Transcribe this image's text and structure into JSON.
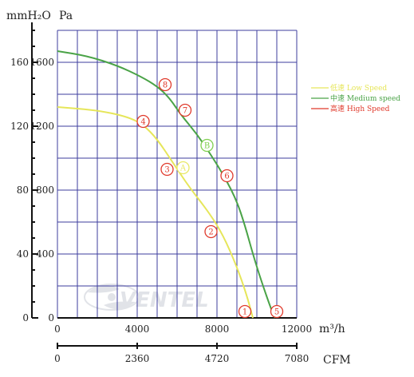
{
  "colors": {
    "grid": "#3d3d9e",
    "axis": "#111111",
    "low": "#e6e65a",
    "medium": "#4aa347",
    "high": "#e0392b",
    "marker_green": "#7fcf4f",
    "marker_yellow": "#e8e866",
    "watermark": "#c9cdd6"
  },
  "units": {
    "pressure_left": "mmH₂O",
    "pressure_right": "Pa",
    "flow_bottom": "m³/h",
    "flow_bottom2": "CFM"
  },
  "watermark": "VENTEL",
  "chart_data": {
    "type": "line",
    "title": "",
    "x_label": "m³/h",
    "x_range": [
      0,
      12000
    ],
    "x_ticks": [
      0,
      4000,
      8000,
      12000
    ],
    "x_tick_labels": [
      "0",
      "4000",
      "8000",
      "12000"
    ],
    "x2_label": "CFM",
    "x2_ticks": [
      0,
      2360,
      4720,
      7080
    ],
    "x2_tick_labels": [
      "0",
      "2360",
      "4720",
      "7080"
    ],
    "y_label": "mmH₂O",
    "y_range": [
      0,
      180
    ],
    "y_ticks": [
      0,
      40,
      80,
      120,
      160
    ],
    "y_tick_labels": [
      "0",
      "40",
      "80",
      "120",
      "160"
    ],
    "y2_label": "Pa",
    "y2_tick_labels": [
      "0",
      "400",
      "800",
      "1200",
      "1600"
    ],
    "grid": true,
    "legend_position": "top-right",
    "legend": [
      {
        "key": "low",
        "label": "低速 Low Speed",
        "color": "#e6e65a"
      },
      {
        "key": "medium",
        "label": "中速 Medium speed",
        "color": "#4aa347"
      },
      {
        "key": "high",
        "label": "高速 High Speed",
        "color": "#e0392b"
      }
    ],
    "series": [
      {
        "key": "low",
        "color": "#e6e65a",
        "points": [
          [
            0,
            132
          ],
          [
            2000,
            130
          ],
          [
            3500,
            126
          ],
          [
            4300,
            121
          ],
          [
            5000,
            112
          ],
          [
            5800,
            97
          ],
          [
            6600,
            82
          ],
          [
            7600,
            66
          ],
          [
            8300,
            52
          ],
          [
            9000,
            32
          ],
          [
            9500,
            14
          ],
          [
            9800,
            0
          ]
        ]
      },
      {
        "key": "medium",
        "color": "#4aa347",
        "points": [
          [
            0,
            167
          ],
          [
            1500,
            164
          ],
          [
            3000,
            158
          ],
          [
            4200,
            151
          ],
          [
            5000,
            145
          ],
          [
            5600,
            138
          ],
          [
            6200,
            127
          ],
          [
            7000,
            115
          ],
          [
            7700,
            102
          ],
          [
            8400,
            88
          ],
          [
            9000,
            73
          ],
          [
            9400,
            58
          ],
          [
            9800,
            40
          ],
          [
            10200,
            24
          ],
          [
            10700,
            6
          ],
          [
            10900,
            0
          ]
        ]
      }
    ],
    "markers": [
      {
        "label": "1",
        "x": 9400,
        "y": 4,
        "color": "#e0392b"
      },
      {
        "label": "2",
        "x": 7700,
        "y": 54,
        "color": "#e0392b"
      },
      {
        "label": "3",
        "x": 5500,
        "y": 93,
        "color": "#e0392b"
      },
      {
        "label": "4",
        "x": 4300,
        "y": 123,
        "color": "#e0392b"
      },
      {
        "label": "5",
        "x": 11000,
        "y": 4,
        "color": "#e0392b"
      },
      {
        "label": "6",
        "x": 8500,
        "y": 89,
        "color": "#e0392b"
      },
      {
        "label": "7",
        "x": 6400,
        "y": 130,
        "color": "#e0392b"
      },
      {
        "label": "8",
        "x": 5400,
        "y": 146,
        "color": "#e0392b"
      },
      {
        "label": "B",
        "x": 7500,
        "y": 108,
        "color": "#7fcf4f"
      },
      {
        "label": "A",
        "x": 6300,
        "y": 94,
        "color": "#e8e866"
      }
    ]
  }
}
